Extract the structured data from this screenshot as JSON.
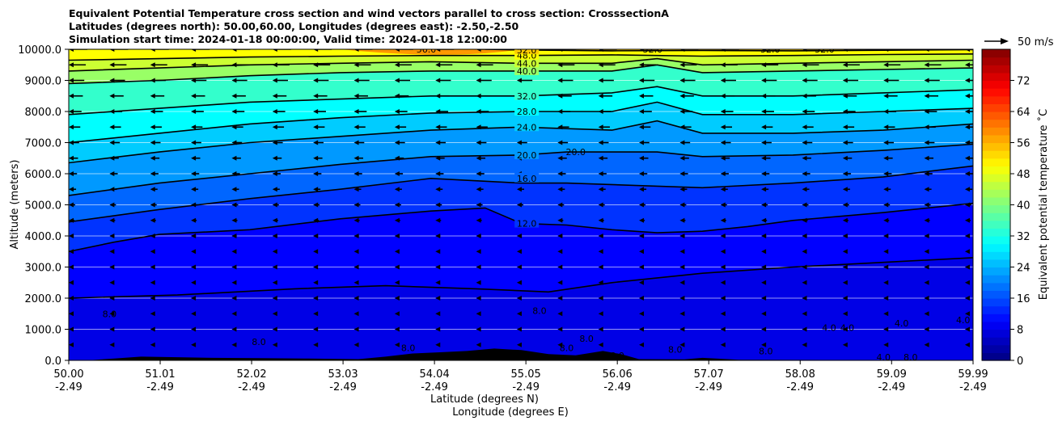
{
  "chart_data": {
    "type": "contour",
    "title_lines": [
      "Equivalent Potential Temperature cross section and wind vectors parallel to cross section: CrosssectionA",
      "Latitudes (degrees north): 50.00,60.00, Longitudes (degrees east): -2.50,-2.50",
      "Simulation start time: 2024-01-18 00:00:00, Valid time: 2024-01-18 12:00:00"
    ],
    "xlabel_1": "Latitude (degrees N)",
    "xlabel_2": "Longitude (degrees E)",
    "ylabel": "Altitude (meters)",
    "xlim": [
      50.0,
      59.99
    ],
    "ylim": [
      0,
      10000
    ],
    "x_ticks": [
      {
        "lat": "50.00",
        "lon": "-2.49",
        "value": 50.0
      },
      {
        "lat": "51.01",
        "lon": "-2.49",
        "value": 51.01
      },
      {
        "lat": "52.02",
        "lon": "-2.49",
        "value": 52.02
      },
      {
        "lat": "53.03",
        "lon": "-2.49",
        "value": 53.03
      },
      {
        "lat": "54.04",
        "lon": "-2.49",
        "value": 54.04
      },
      {
        "lat": "55.05",
        "lon": "-2.49",
        "value": 55.05
      },
      {
        "lat": "56.06",
        "lon": "-2.49",
        "value": 56.06
      },
      {
        "lat": "57.07",
        "lon": "-2.49",
        "value": 57.07
      },
      {
        "lat": "58.08",
        "lon": "-2.49",
        "value": 58.08
      },
      {
        "lat": "59.09",
        "lon": "-2.49",
        "value": 59.09
      },
      {
        "lat": "59.99",
        "lon": "-2.49",
        "value": 59.99
      }
    ],
    "y_ticks": [
      {
        "label": "0.0",
        "value": 0
      },
      {
        "label": "1000.0",
        "value": 1000
      },
      {
        "label": "2000.0",
        "value": 2000
      },
      {
        "label": "3000.0",
        "value": 3000
      },
      {
        "label": "4000.0",
        "value": 4000
      },
      {
        "label": "5000.0",
        "value": 5000
      },
      {
        "label": "6000.0",
        "value": 6000
      },
      {
        "label": "7000.0",
        "value": 7000
      },
      {
        "label": "8000.0",
        "value": 8000
      },
      {
        "label": "9000.0",
        "value": 9000
      },
      {
        "label": "10000.0",
        "value": 10000
      }
    ],
    "grid": "horizontal",
    "colorbar": {
      "label": "Equivalent potential temperature ˚C",
      "range": [
        0,
        80
      ],
      "ticks": [
        {
          "label": "0",
          "value": 0
        },
        {
          "label": "8",
          "value": 8
        },
        {
          "label": "16",
          "value": 16
        },
        {
          "label": "24",
          "value": 24
        },
        {
          "label": "32",
          "value": 32
        },
        {
          "label": "40",
          "value": 40
        },
        {
          "label": "48",
          "value": 48
        },
        {
          "label": "56",
          "value": 56
        },
        {
          "label": "64",
          "value": 64
        },
        {
          "label": "72",
          "value": 72
        }
      ],
      "colormap": "jet"
    },
    "quiver_key": {
      "label": "50 m/s",
      "value": 50
    },
    "contour_lines": [
      {
        "level": 8,
        "label": "8.0",
        "points": [
          [
            50.0,
            2000
          ],
          [
            51.2,
            2100
          ],
          [
            52.5,
            2300
          ],
          [
            53.5,
            2400
          ],
          [
            54.5,
            2300
          ],
          [
            55.3,
            2200
          ],
          [
            56.0,
            2500
          ],
          [
            57.0,
            2800
          ],
          [
            58.0,
            3000
          ],
          [
            59.99,
            3300
          ]
        ]
      },
      {
        "level": 12,
        "label": "12.0",
        "label_at": [
          55.05,
          4400
        ],
        "points": [
          [
            50.0,
            3500
          ],
          [
            50.5,
            3800
          ],
          [
            51.0,
            4050
          ],
          [
            52.0,
            4200
          ],
          [
            53.0,
            4550
          ],
          [
            54.0,
            4800
          ],
          [
            54.6,
            4900
          ],
          [
            55.0,
            4400
          ],
          [
            55.5,
            4350
          ],
          [
            56.0,
            4200
          ],
          [
            56.5,
            4100
          ],
          [
            57.0,
            4150
          ],
          [
            57.5,
            4300
          ],
          [
            58.0,
            4500
          ],
          [
            59.0,
            4750
          ],
          [
            59.99,
            5050
          ]
        ]
      },
      {
        "level": 16,
        "label": "16.0",
        "label_at": [
          55.05,
          5850
        ],
        "points": [
          [
            50.0,
            4450
          ],
          [
            51.0,
            4850
          ],
          [
            52.0,
            5200
          ],
          [
            53.0,
            5500
          ],
          [
            54.0,
            5850
          ],
          [
            55.0,
            5700
          ],
          [
            55.5,
            5700
          ],
          [
            56.5,
            5600
          ],
          [
            57.0,
            5550
          ],
          [
            58.0,
            5700
          ],
          [
            59.0,
            5900
          ],
          [
            59.99,
            6250
          ]
        ]
      },
      {
        "level": 20,
        "label": "20.0",
        "label_at": [
          55.05,
          6600
        ],
        "points": [
          [
            50.0,
            5300
          ],
          [
            51.0,
            5700
          ],
          [
            52.0,
            6000
          ],
          [
            53.0,
            6300
          ],
          [
            54.0,
            6550
          ],
          [
            55.0,
            6600
          ],
          [
            55.5,
            6700
          ],
          [
            56.5,
            6700
          ],
          [
            57.0,
            6550
          ],
          [
            58.0,
            6600
          ],
          [
            59.0,
            6750
          ],
          [
            59.99,
            6950
          ]
        ]
      },
      {
        "level": 24,
        "label": "24.0",
        "label_at": [
          55.05,
          7500
        ],
        "points": [
          [
            50.0,
            6350
          ],
          [
            51.0,
            6700
          ],
          [
            52.0,
            7000
          ],
          [
            53.0,
            7200
          ],
          [
            54.0,
            7400
          ],
          [
            55.0,
            7500
          ],
          [
            56.0,
            7400
          ],
          [
            56.5,
            7700
          ],
          [
            57.0,
            7300
          ],
          [
            58.0,
            7300
          ],
          [
            59.0,
            7400
          ],
          [
            59.99,
            7600
          ]
        ]
      },
      {
        "level": 28,
        "label": "28.0",
        "label_at": [
          55.05,
          8000
        ],
        "points": [
          [
            50.0,
            7000
          ],
          [
            51.0,
            7300
          ],
          [
            52.0,
            7600
          ],
          [
            53.0,
            7800
          ],
          [
            54.0,
            7950
          ],
          [
            55.0,
            8000
          ],
          [
            56.0,
            8000
          ],
          [
            56.5,
            8300
          ],
          [
            57.0,
            7900
          ],
          [
            58.0,
            7900
          ],
          [
            59.0,
            8000
          ],
          [
            59.99,
            8100
          ]
        ]
      },
      {
        "level": 32,
        "label": "32.0",
        "label_at": [
          55.05,
          8500
        ],
        "points": [
          [
            50.0,
            7900
          ],
          [
            51.0,
            8100
          ],
          [
            52.0,
            8300
          ],
          [
            53.0,
            8400
          ],
          [
            54.0,
            8500
          ],
          [
            55.0,
            8500
          ],
          [
            56.0,
            8600
          ],
          [
            56.5,
            8800
          ],
          [
            57.0,
            8500
          ],
          [
            58.0,
            8500
          ],
          [
            59.0,
            8600
          ],
          [
            59.99,
            8700
          ]
        ]
      },
      {
        "level": 40,
        "label": "40.0",
        "label_at": [
          55.05,
          9300
        ],
        "points": [
          [
            50.0,
            8900
          ],
          [
            51.0,
            9000
          ],
          [
            52.0,
            9150
          ],
          [
            53.0,
            9250
          ],
          [
            54.0,
            9300
          ],
          [
            55.0,
            9300
          ],
          [
            56.0,
            9300
          ],
          [
            56.5,
            9500
          ],
          [
            57.0,
            9250
          ],
          [
            58.0,
            9300
          ],
          [
            59.0,
            9350
          ],
          [
            59.99,
            9400
          ]
        ]
      },
      {
        "level": 44,
        "label": "44.0",
        "label_at": [
          55.05,
          9550
        ],
        "points": [
          [
            50.0,
            9300
          ],
          [
            51.0,
            9400
          ],
          [
            52.0,
            9500
          ],
          [
            53.0,
            9550
          ],
          [
            54.0,
            9600
          ],
          [
            55.0,
            9550
          ],
          [
            56.0,
            9550
          ],
          [
            56.5,
            9700
          ],
          [
            57.0,
            9500
          ],
          [
            58.0,
            9550
          ],
          [
            59.0,
            9600
          ],
          [
            59.99,
            9650
          ]
        ]
      },
      {
        "level": 48,
        "label": "48.0",
        "label_at": [
          55.05,
          9800
        ],
        "points": [
          [
            50.0,
            9650
          ],
          [
            51.0,
            9700
          ],
          [
            52.0,
            9750
          ],
          [
            53.0,
            9780
          ],
          [
            54.0,
            9800
          ],
          [
            55.0,
            9800
          ],
          [
            56.0,
            9820
          ],
          [
            57.0,
            9780
          ],
          [
            58.0,
            9800
          ],
          [
            59.0,
            9830
          ],
          [
            59.99,
            9850
          ]
        ]
      },
      {
        "level": 52,
        "label": "52.0",
        "label_at": [
          55.05,
          9980
        ],
        "points": [
          [
            54.6,
            10000
          ],
          [
            55.0,
            9980
          ],
          [
            56.0,
            9950
          ],
          [
            57.0,
            9960
          ],
          [
            58.0,
            9950
          ],
          [
            59.0,
            9970
          ],
          [
            59.99,
            9990
          ]
        ]
      }
    ],
    "extra_labels": [
      {
        "text": "56.0",
        "x": 53.95,
        "y": 10000
      },
      {
        "text": "20.0",
        "x": 55.6,
        "y": 6700
      },
      {
        "text": "52.0",
        "x": 56.45,
        "y": 10000
      },
      {
        "text": "52.0",
        "x": 57.75,
        "y": 10000
      },
      {
        "text": "52.0",
        "x": 58.35,
        "y": 10000
      },
      {
        "text": "8.0",
        "x": 50.45,
        "y": 1500
      },
      {
        "text": "8.0",
        "x": 52.1,
        "y": 600
      },
      {
        "text": "8.0",
        "x": 53.75,
        "y": 400
      },
      {
        "text": "8.0",
        "x": 55.2,
        "y": 1600
      },
      {
        "text": "8.0",
        "x": 55.5,
        "y": 400
      },
      {
        "text": "8.0",
        "x": 55.72,
        "y": 700
      },
      {
        "text": "8.0",
        "x": 56.06,
        "y": 150
      },
      {
        "text": "8.0",
        "x": 56.7,
        "y": 350
      },
      {
        "text": "8.0",
        "x": 57.7,
        "y": 300
      },
      {
        "text": "4.0",
        "x": 58.4,
        "y": 1050
      },
      {
        "text": "4.0",
        "x": 58.6,
        "y": 1050
      },
      {
        "text": "4.0",
        "x": 59.2,
        "y": 1200
      },
      {
        "text": "4.0",
        "x": 59.88,
        "y": 1300
      },
      {
        "text": "4.0",
        "x": 59.0,
        "y": 100
      },
      {
        "text": "8.0",
        "x": 59.3,
        "y": 100
      }
    ],
    "terrain": [
      [
        50.0,
        0
      ],
      [
        50.2,
        0
      ],
      [
        50.5,
        60
      ],
      [
        50.8,
        120
      ],
      [
        51.2,
        100
      ],
      [
        51.6,
        80
      ],
      [
        52.1,
        70
      ],
      [
        52.6,
        60
      ],
      [
        53.2,
        40
      ],
      [
        53.5,
        120
      ],
      [
        53.8,
        220
      ],
      [
        54.1,
        260
      ],
      [
        54.4,
        300
      ],
      [
        54.7,
        380
      ],
      [
        55.0,
        330
      ],
      [
        55.3,
        200
      ],
      [
        55.6,
        160
      ],
      [
        55.9,
        300
      ],
      [
        56.1,
        200
      ],
      [
        56.3,
        40
      ],
      [
        56.8,
        30
      ],
      [
        57.0,
        80
      ],
      [
        57.4,
        20
      ],
      [
        59.99,
        0
      ]
    ],
    "wind_vector_rows_m": [
      10000,
      9500,
      9000,
      8500,
      8000,
      7500,
      7000,
      6500,
      6000,
      5500,
      5000,
      4500,
      4000,
      3500,
      3000,
      2500,
      2000,
      1500,
      1000,
      500
    ],
    "wind_vector_cols_deg": [
      50.0,
      50.45,
      50.9,
      51.35,
      51.8,
      52.25,
      52.7,
      53.15,
      53.6,
      54.05,
      54.5,
      54.95,
      55.4,
      55.85,
      56.3,
      56.75,
      57.2,
      57.65,
      58.1,
      58.55,
      59.0,
      59.45,
      59.9
    ]
  }
}
